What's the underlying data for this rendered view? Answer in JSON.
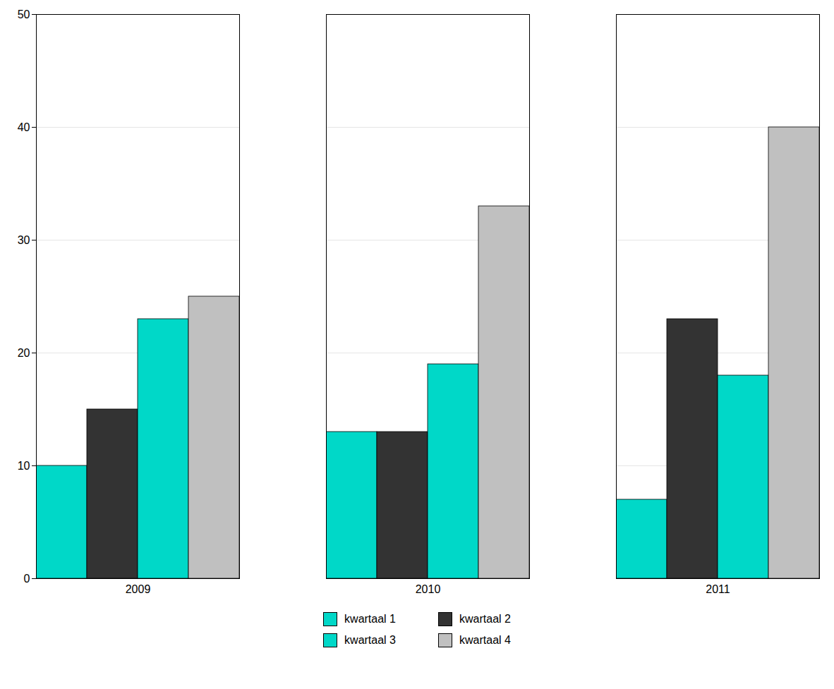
{
  "chart_data": {
    "type": "bar",
    "categories": [
      "2009",
      "2010",
      "2011"
    ],
    "series": [
      {
        "name": "kwartaal 1",
        "color": "#00D8C8",
        "values": [
          10,
          13,
          7
        ]
      },
      {
        "name": "kwartaal 2",
        "color": "#333333",
        "values": [
          15,
          13,
          23
        ]
      },
      {
        "name": "kwartaal 3",
        "color": "#00D8C8",
        "values": [
          23,
          19,
          18
        ]
      },
      {
        "name": "kwartaal 4",
        "color": "#C0C0C0",
        "values": [
          25,
          33,
          40
        ]
      }
    ],
    "ylim": [
      0,
      50
    ],
    "yticks": [
      0,
      10,
      20,
      30,
      40,
      50
    ],
    "grid": true,
    "legend": "bottom"
  }
}
